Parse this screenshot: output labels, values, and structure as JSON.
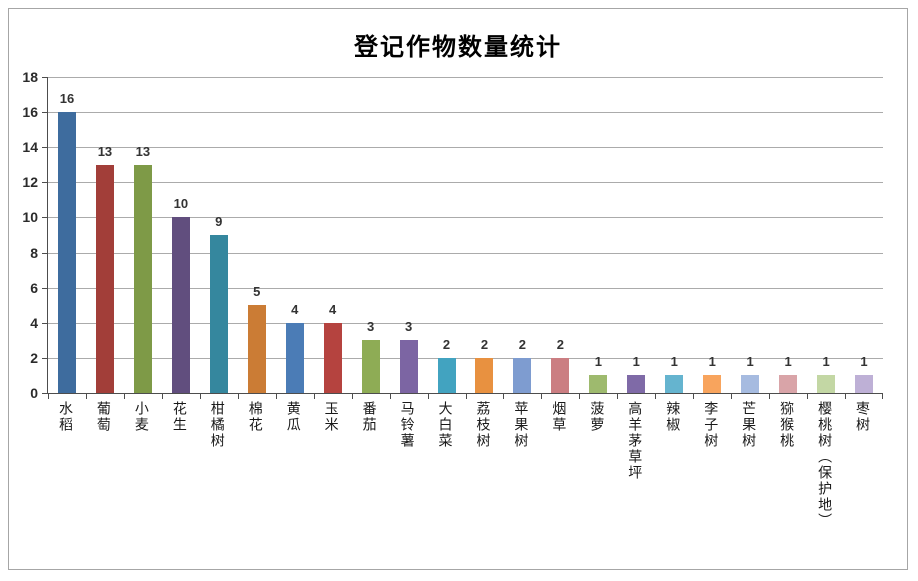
{
  "chart_data": {
    "type": "bar",
    "title": "登记作物数量统计",
    "categories": [
      "水稻",
      "葡萄",
      "小麦",
      "花生",
      "柑橘树",
      "棉花",
      "黄瓜",
      "玉米",
      "番茄",
      "马铃薯",
      "大白菜",
      "荔枝树",
      "苹果树",
      "烟草",
      "菠萝",
      "高羊茅草坪",
      "辣椒",
      "李子树",
      "芒果树",
      "猕猴桃",
      "樱桃树（保护地）",
      "枣树"
    ],
    "values": [
      16,
      13,
      13,
      10,
      9,
      5,
      4,
      4,
      3,
      3,
      2,
      2,
      2,
      2,
      1,
      1,
      1,
      1,
      1,
      1,
      1,
      1
    ],
    "bar_colors": [
      "#3E6C9E",
      "#A23E39",
      "#7E9A47",
      "#614E7E",
      "#35879E",
      "#CB7C35",
      "#4B7CB6",
      "#B5433F",
      "#8EAC55",
      "#7C65A3",
      "#42A3C0",
      "#E89140",
      "#7E9CD0",
      "#CB7E82",
      "#9EBA6E",
      "#7F6AA7",
      "#65B4CF",
      "#F8A45D",
      "#A6BBE0",
      "#D9A4A8",
      "#C3D7A4",
      "#BEB0D6"
    ],
    "xlabel": "",
    "ylabel": "",
    "ylim": [
      0,
      18
    ],
    "ytick_step": 2,
    "yticks": [
      0,
      2,
      4,
      6,
      8,
      10,
      12,
      14,
      16,
      18
    ],
    "grid": true,
    "legend": false,
    "data_labels": true,
    "orientation": "vertical-category-labels"
  },
  "style_colors": {
    "frame_border": "#A6A6A6",
    "gridline": "#ABABAB",
    "axis": "#4D4D4D",
    "value_label": "#333333",
    "tick_label": "#2B2B2B"
  }
}
